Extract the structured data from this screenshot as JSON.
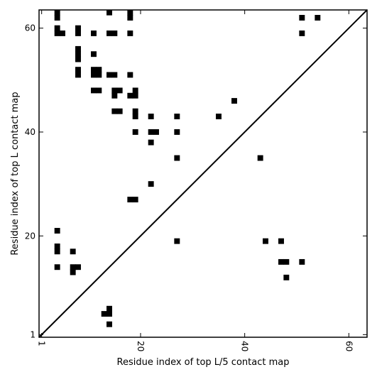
{
  "chart_data": {
    "type": "heatmap",
    "title": "",
    "xlabel": "Residue index of top L/5 contact map",
    "ylabel": "Residue index of top L contact map",
    "xlim": [
      0.5,
      63.5
    ],
    "ylim": [
      0.5,
      63.5
    ],
    "xticks": [
      1,
      20,
      40,
      60
    ],
    "yticks": [
      1,
      20,
      40,
      60
    ],
    "grid": false,
    "diagonal": true,
    "colors": {
      "cell": "#000000",
      "background": "#ffffff",
      "diagonal": "#000000"
    },
    "upper_contacts": [
      [
        4,
        62
      ],
      [
        4,
        63
      ],
      [
        4,
        60
      ],
      [
        4,
        59
      ],
      [
        5,
        59
      ],
      [
        8,
        60
      ],
      [
        8,
        59
      ],
      [
        8,
        56
      ],
      [
        8,
        55
      ],
      [
        8,
        54
      ],
      [
        8,
        52
      ],
      [
        8,
        51
      ],
      [
        11,
        59
      ],
      [
        11,
        55
      ],
      [
        11,
        52
      ],
      [
        12,
        52
      ],
      [
        11,
        51
      ],
      [
        12,
        51
      ],
      [
        11,
        48
      ],
      [
        12,
        48
      ],
      [
        14,
        63
      ],
      [
        14,
        59
      ],
      [
        15,
        59
      ],
      [
        14,
        51
      ],
      [
        15,
        51
      ],
      [
        15,
        48
      ],
      [
        16,
        48
      ],
      [
        15,
        47
      ],
      [
        15,
        44
      ],
      [
        16,
        44
      ],
      [
        18,
        63
      ],
      [
        18,
        62
      ],
      [
        18,
        59
      ],
      [
        18,
        51
      ],
      [
        18,
        47
      ],
      [
        19,
        48
      ],
      [
        19,
        47
      ],
      [
        19,
        44
      ],
      [
        19,
        43
      ],
      [
        19,
        40
      ],
      [
        22,
        43
      ],
      [
        22,
        40
      ],
      [
        23,
        40
      ],
      [
        22,
        38
      ],
      [
        27,
        43
      ],
      [
        27,
        40
      ],
      [
        27,
        35
      ],
      [
        22,
        30
      ],
      [
        18,
        27
      ],
      [
        19,
        27
      ],
      [
        35,
        43
      ],
      [
        38,
        46
      ],
      [
        51,
        62
      ],
      [
        54,
        62
      ],
      [
        51,
        59
      ]
    ],
    "lower_contacts": [
      [
        4,
        21
      ],
      [
        4,
        18
      ],
      [
        4,
        17
      ],
      [
        4,
        14
      ],
      [
        7,
        17
      ],
      [
        7,
        14
      ],
      [
        8,
        14
      ],
      [
        7,
        13
      ],
      [
        14,
        6
      ],
      [
        14,
        5
      ],
      [
        13,
        5
      ],
      [
        14,
        3
      ],
      [
        27,
        19
      ],
      [
        44,
        19
      ],
      [
        47,
        19
      ],
      [
        47,
        15
      ],
      [
        48,
        15
      ],
      [
        51,
        15
      ],
      [
        48,
        12
      ],
      [
        43,
        35
      ]
    ]
  }
}
